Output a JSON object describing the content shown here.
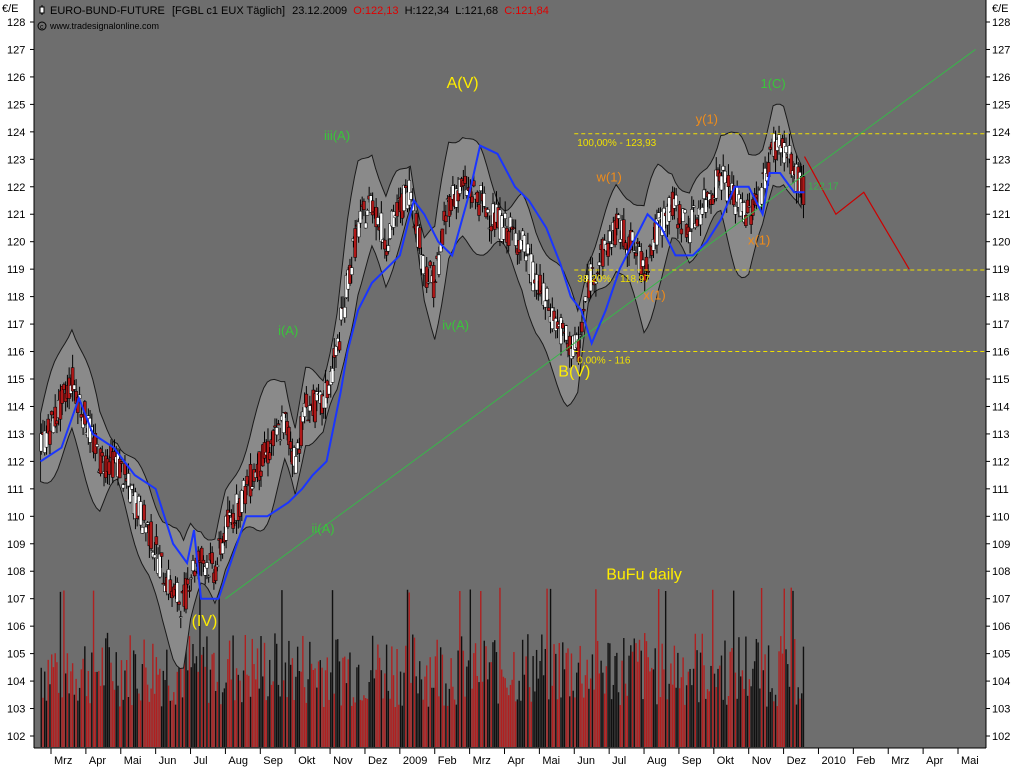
{
  "header": {
    "symbol_icon": "candlestick-icon",
    "instrument": "EURO-BUND-FUTURE",
    "code_info": "[FGBL c1 EUX  Täglich]",
    "date": "23.12.2009",
    "open": "O:122,13",
    "high": "H:122,34",
    "low": "L:121,68",
    "close": "C:121,84",
    "source": "www.tradesignalonline.com",
    "source_icon": "copyright-icon"
  },
  "axis": {
    "unit_left": "€/E",
    "unit_right": "€/E"
  },
  "colors": {
    "panel": "#6e6e6e",
    "band_fill": "#8a8a8a",
    "band_edge": "#1a1a1a",
    "price_line": "#1a35ff",
    "trend_line": "#39b54a",
    "fib_line": "#f0e000",
    "projection": "#cc0000",
    "candle_up": "#ffffff",
    "candle_down": "#b01818",
    "volume_up": "#101010",
    "volume_down": "#b02020",
    "wave_yellow": "#ffee00",
    "wave_green": "#39c63a",
    "wave_orange": "#f08c1a"
  },
  "chart_data": {
    "type": "line",
    "title": "EURO-BUND-FUTURE",
    "ylabel": "€/E",
    "ylim": [
      101.6,
      128.5
    ],
    "y_ticks": [
      102,
      103,
      104,
      105,
      106,
      107,
      108,
      109,
      110,
      111,
      112,
      113,
      114,
      115,
      116,
      117,
      118,
      119,
      120,
      121,
      122,
      123,
      124,
      125,
      126,
      127,
      128
    ],
    "x_ticks": [
      "Mrz",
      "Apr",
      "Mai",
      "Jun",
      "Jul",
      "Aug",
      "Sep",
      "Okt",
      "Nov",
      "Dez",
      "2009",
      "Feb",
      "Mrz",
      "Apr",
      "Mai",
      "Jun",
      "Jul",
      "Aug",
      "Sep",
      "Okt",
      "Nov",
      "Dez",
      "2010",
      "Feb",
      "Mrz",
      "Apr",
      "Mai"
    ],
    "x_tick_months": [
      0,
      1,
      2,
      3,
      4,
      5,
      6,
      7,
      8,
      9,
      10,
      11,
      12,
      13,
      14,
      15,
      16,
      17,
      18,
      19,
      20,
      21,
      22,
      23,
      24,
      25,
      26
    ],
    "price_path": [
      [
        -0.3,
        112.5
      ],
      [
        0.2,
        113.8
      ],
      [
        0.6,
        115.0
      ],
      [
        1.0,
        113.5
      ],
      [
        1.4,
        112.0
      ],
      [
        1.9,
        112.0
      ],
      [
        2.3,
        110.8
      ],
      [
        2.8,
        109.5
      ],
      [
        3.2,
        108.0
      ],
      [
        3.5,
        107.2
      ],
      [
        3.8,
        106.8
      ],
      [
        4.0,
        108.0
      ],
      [
        4.3,
        108.5
      ],
      [
        4.7,
        108.0
      ],
      [
        5.0,
        109.5
      ],
      [
        5.4,
        110.5
      ],
      [
        5.8,
        111.5
      ],
      [
        6.3,
        112.5
      ],
      [
        6.7,
        113.5
      ],
      [
        7.0,
        112.0
      ],
      [
        7.3,
        114.0
      ],
      [
        7.8,
        114.0
      ],
      [
        8.2,
        116.0
      ],
      [
        8.5,
        118.5
      ],
      [
        8.8,
        120.5
      ],
      [
        9.2,
        121.5
      ],
      [
        9.6,
        120.0
      ],
      [
        9.9,
        121.0
      ],
      [
        10.3,
        122.0
      ],
      [
        10.7,
        119.0
      ],
      [
        11.0,
        118.5
      ],
      [
        11.4,
        121.5
      ],
      [
        11.8,
        122.0
      ],
      [
        12.3,
        121.5
      ],
      [
        12.6,
        121.0
      ],
      [
        13.0,
        120.5
      ],
      [
        13.5,
        120.0
      ],
      [
        13.9,
        118.5
      ],
      [
        14.3,
        117.5
      ],
      [
        14.8,
        116.3
      ],
      [
        15.1,
        116.0
      ],
      [
        15.4,
        118.5
      ],
      [
        15.8,
        119.5
      ],
      [
        16.2,
        120.5
      ],
      [
        16.6,
        120.0
      ],
      [
        17.0,
        119.0
      ],
      [
        17.4,
        120.5
      ],
      [
        17.8,
        121.3
      ],
      [
        18.3,
        120.5
      ],
      [
        18.8,
        121.5
      ],
      [
        19.2,
        122.5
      ],
      [
        19.6,
        121.5
      ],
      [
        20.0,
        121.0
      ],
      [
        20.4,
        122.0
      ],
      [
        20.7,
        123.5
      ],
      [
        21.0,
        123.5
      ],
      [
        21.3,
        122.5
      ],
      [
        21.6,
        121.8
      ]
    ],
    "moving_average": [
      [
        -0.3,
        112.0
      ],
      [
        0.3,
        112.5
      ],
      [
        0.8,
        114.3
      ],
      [
        1.2,
        113.0
      ],
      [
        1.8,
        112.5
      ],
      [
        2.4,
        111.5
      ],
      [
        3.0,
        111.0
      ],
      [
        3.5,
        109.0
      ],
      [
        3.9,
        108.3
      ],
      [
        4.1,
        109.5
      ],
      [
        4.3,
        107.0
      ],
      [
        4.8,
        107.0
      ],
      [
        5.2,
        108.5
      ],
      [
        5.6,
        110.0
      ],
      [
        6.2,
        110.0
      ],
      [
        6.8,
        110.5
      ],
      [
        7.2,
        111.0
      ],
      [
        7.5,
        111.5
      ],
      [
        7.9,
        112.0
      ],
      [
        8.3,
        114.5
      ],
      [
        8.5,
        116.0
      ],
      [
        8.8,
        117.5
      ],
      [
        9.2,
        118.5
      ],
      [
        9.6,
        119.0
      ],
      [
        10.0,
        119.5
      ],
      [
        10.4,
        121.5
      ],
      [
        10.7,
        121.0
      ],
      [
        11.1,
        120.0
      ],
      [
        11.5,
        119.5
      ],
      [
        12.0,
        121.8
      ],
      [
        12.3,
        123.5
      ],
      [
        12.8,
        123.2
      ],
      [
        13.3,
        122.0
      ],
      [
        13.7,
        121.5
      ],
      [
        14.2,
        120.5
      ],
      [
        14.6,
        119.2
      ],
      [
        14.9,
        118.0
      ],
      [
        15.2,
        117.5
      ],
      [
        15.5,
        116.3
      ],
      [
        15.9,
        117.5
      ],
      [
        16.3,
        119.0
      ],
      [
        16.7,
        120.0
      ],
      [
        17.1,
        121.0
      ],
      [
        17.5,
        120.5
      ],
      [
        17.9,
        119.5
      ],
      [
        18.4,
        119.5
      ],
      [
        18.8,
        120.0
      ],
      [
        19.2,
        120.8
      ],
      [
        19.6,
        122.0
      ],
      [
        20.0,
        122.0
      ],
      [
        20.4,
        121.0
      ],
      [
        20.6,
        122.5
      ],
      [
        20.9,
        122.5
      ],
      [
        21.3,
        121.8
      ],
      [
        21.6,
        121.8
      ]
    ],
    "trend_line": {
      "from": [
        5.0,
        107.0
      ],
      "to": [
        26.5,
        127.0
      ]
    },
    "fib_levels": [
      {
        "value": 123.93,
        "label": "100,00% - 123,93"
      },
      {
        "value": 118.97,
        "label": "38,20% - 118,97"
      },
      {
        "value": 116,
        "label": "0,00% - 116"
      }
    ],
    "last_price_label": "122,17",
    "projection": [
      [
        21.6,
        123.1
      ],
      [
        22.5,
        121.0
      ],
      [
        23.3,
        121.8
      ],
      [
        24.6,
        119.0
      ]
    ],
    "volume_ylim": [
      0,
      1
    ],
    "wave_labels": [
      {
        "text": "A(V)",
        "x": 11.8,
        "y": 125.6,
        "color": "yellow"
      },
      {
        "text": "(IV)",
        "x": 4.4,
        "y": 106.0,
        "color": "yellow"
      },
      {
        "text": "B(V)",
        "x": 15.0,
        "y": 115.1,
        "color": "yellow"
      },
      {
        "text": "BuFu daily",
        "x": 17.0,
        "y": 107.7,
        "color": "yellow"
      },
      {
        "text": "iii(A)",
        "x": 8.2,
        "y": 123.7,
        "color": "green"
      },
      {
        "text": "i(A)",
        "x": 6.8,
        "y": 116.6,
        "color": "green"
      },
      {
        "text": "ii(A)",
        "x": 7.8,
        "y": 109.4,
        "color": "green"
      },
      {
        "text": "iv(A)",
        "x": 11.6,
        "y": 116.8,
        "color": "green"
      },
      {
        "text": "1(C)",
        "x": 20.7,
        "y": 125.6,
        "color": "green"
      },
      {
        "text": "y(1)",
        "x": 18.8,
        "y": 124.3,
        "color": "orange"
      },
      {
        "text": "w(1)",
        "x": 16.0,
        "y": 122.2,
        "color": "orange"
      },
      {
        "text": "x(1)",
        "x": 17.3,
        "y": 117.9,
        "color": "orange"
      },
      {
        "text": "x(1)",
        "x": 20.3,
        "y": 119.9,
        "color": "orange"
      }
    ]
  }
}
